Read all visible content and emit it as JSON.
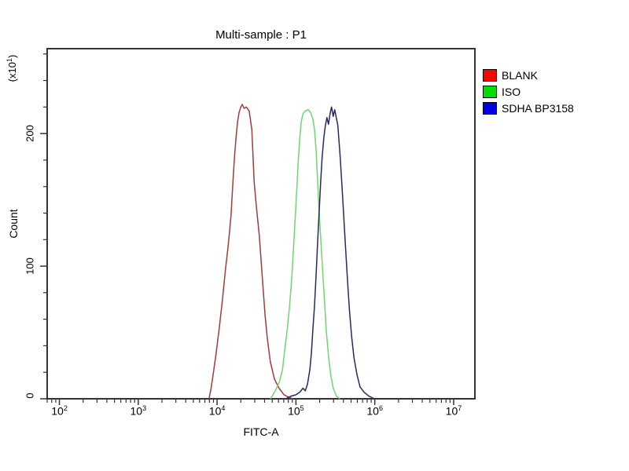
{
  "title": "Multi-sample : P1",
  "axes": {
    "x_label": "FITC-A",
    "y_label": "Count",
    "y_multiplier_prefix": "(x10",
    "y_multiplier_exp": "1",
    "y_multiplier_suffix": ")",
    "x_tick_base": "10",
    "x_tick_exponents": [
      2,
      3,
      4,
      5,
      6,
      7
    ],
    "y_tick_values": [
      0,
      100,
      200
    ],
    "y_minor_step": 20
  },
  "legend": [
    {
      "label": "BLANK",
      "color": "#fe0000"
    },
    {
      "label": "ISO",
      "color": "#00dd00"
    },
    {
      "label": "SDHA BP3158",
      "color": "#0000e0"
    }
  ],
  "frame_color": "#333333",
  "chart_data": {
    "type": "line",
    "title": "Multi-sample : P1",
    "xlabel": "FITC-A",
    "ylabel": "Count (x10^1)",
    "xscale": "log",
    "xlim": [
      70,
      18600000
    ],
    "ylim": [
      0,
      264
    ],
    "grid": false,
    "legend_position": "right-outside",
    "series": [
      {
        "name": "BLANK",
        "color": "#a23b3b",
        "points": [
          [
            7900,
            0
          ],
          [
            8400,
            8
          ],
          [
            9000,
            20
          ],
          [
            9700,
            34
          ],
          [
            10600,
            52
          ],
          [
            11600,
            73
          ],
          [
            12700,
            96
          ],
          [
            13900,
            117
          ],
          [
            15000,
            138
          ],
          [
            15800,
            161
          ],
          [
            16600,
            182
          ],
          [
            17400,
            197
          ],
          [
            18200,
            209
          ],
          [
            19000,
            216
          ],
          [
            20000,
            220
          ],
          [
            20900,
            222
          ],
          [
            22000,
            219
          ],
          [
            23500,
            220
          ],
          [
            25500,
            217
          ],
          [
            27600,
            203
          ],
          [
            29500,
            164
          ],
          [
            31600,
            144
          ],
          [
            34300,
            123
          ],
          [
            36700,
            99
          ],
          [
            40500,
            64
          ],
          [
            43300,
            46
          ],
          [
            47300,
            28
          ],
          [
            53300,
            15
          ],
          [
            61000,
            8
          ],
          [
            70500,
            3
          ],
          [
            82700,
            1
          ],
          [
            90600,
            0
          ]
        ]
      },
      {
        "name": "ISO",
        "color": "#6fd66f",
        "points": [
          [
            47600,
            0
          ],
          [
            54500,
            6
          ],
          [
            61000,
            12
          ],
          [
            67500,
            22
          ],
          [
            72000,
            37
          ],
          [
            77500,
            52
          ],
          [
            83000,
            70
          ],
          [
            89000,
            93
          ],
          [
            95000,
            123
          ],
          [
            102000,
            156
          ],
          [
            107000,
            179
          ],
          [
            112000,
            197
          ],
          [
            117000,
            209
          ],
          [
            123000,
            215
          ],
          [
            131000,
            217
          ],
          [
            143000,
            218
          ],
          [
            153000,
            216
          ],
          [
            164000,
            211
          ],
          [
            172000,
            203
          ],
          [
            180000,
            188
          ],
          [
            188000,
            165
          ],
          [
            197000,
            141
          ],
          [
            211000,
            111
          ],
          [
            226000,
            82
          ],
          [
            242000,
            52
          ],
          [
            260000,
            31
          ],
          [
            278000,
            17
          ],
          [
            297000,
            8
          ],
          [
            326000,
            2
          ],
          [
            360000,
            0
          ]
        ]
      },
      {
        "name": "SDHA BP3158",
        "color": "#29295f",
        "points": [
          [
            74000,
            0
          ],
          [
            87000,
            2
          ],
          [
            100000,
            3
          ],
          [
            112000,
            5
          ],
          [
            123000,
            8
          ],
          [
            131000,
            6
          ],
          [
            140000,
            11
          ],
          [
            150000,
            22
          ],
          [
            157000,
            34
          ],
          [
            164000,
            52
          ],
          [
            172000,
            70
          ],
          [
            180000,
            93
          ],
          [
            188000,
            117
          ],
          [
            197000,
            141
          ],
          [
            206000,
            164
          ],
          [
            215000,
            182
          ],
          [
            226000,
            197
          ],
          [
            236000,
            206
          ],
          [
            247000,
            212
          ],
          [
            259000,
            207
          ],
          [
            271000,
            215
          ],
          [
            283000,
            220
          ],
          [
            297000,
            213
          ],
          [
            310000,
            218
          ],
          [
            325000,
            212
          ],
          [
            340000,
            206
          ],
          [
            364000,
            182
          ],
          [
            390000,
            153
          ],
          [
            417000,
            123
          ],
          [
            447000,
            93
          ],
          [
            477000,
            67
          ],
          [
            510000,
            46
          ],
          [
            545000,
            31
          ],
          [
            595000,
            18
          ],
          [
            650000,
            9
          ],
          [
            730000,
            5
          ],
          [
            840000,
            2
          ],
          [
            990000,
            0
          ]
        ]
      }
    ]
  }
}
